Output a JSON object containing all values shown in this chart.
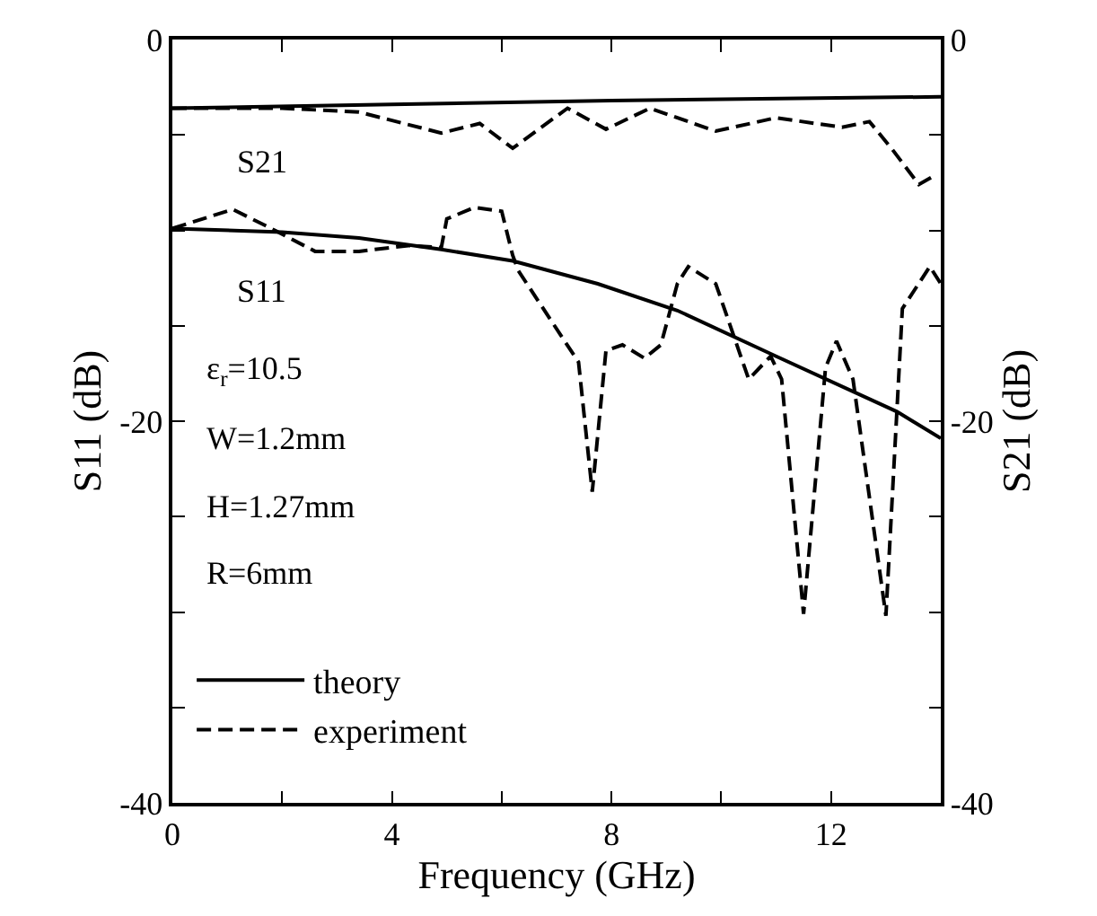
{
  "chart_data": {
    "type": "line",
    "xlabel": "Frequency (GHz)",
    "ylabel": "S11 (dB)",
    "y2label": "S21 (dB)",
    "xlim": [
      0,
      14
    ],
    "xticks": [
      0,
      {
        "value": 2,
        "label": null
      },
      4,
      {
        "value": 6,
        "label": null
      },
      8,
      {
        "value": 10,
        "label": null
      },
      12
    ],
    "ylim": [
      -40,
      0
    ],
    "yticks": [
      -40,
      {
        "value": -35,
        "label": null
      },
      {
        "value": -30,
        "label": null
      },
      {
        "value": -25,
        "label": null
      },
      -20,
      {
        "value": -15,
        "label": null
      },
      {
        "value": -10,
        "label": null
      },
      {
        "value": -5,
        "label": null
      },
      0
    ],
    "y2lim": [
      -40,
      0
    ],
    "y2ticks": [
      -40,
      {
        "value": -35,
        "label": null
      },
      {
        "value": -30,
        "label": null
      },
      {
        "value": -25,
        "label": null
      },
      -20,
      {
        "value": -15,
        "label": null
      },
      {
        "value": -10,
        "label": null
      },
      {
        "value": -5,
        "label": null
      },
      0
    ],
    "legend": "bottom left",
    "marker": "none",
    "series": [
      {
        "name": "theory",
        "color": "#000000",
        "line_style": "solid",
        "x": [
          0,
          2,
          3.4,
          4.9,
          6.2,
          7.75,
          9.2,
          11.0,
          13.2,
          14.0
        ],
        "values": [
          -9.9,
          -10.1,
          -10.4,
          -11.0,
          -11.6,
          -12.8,
          -14.2,
          -16.6,
          -19.5,
          -20.9
        ]
      },
      {
        "color": "#000000",
        "line_style": "solid",
        "axis": "y2",
        "x": [
          0,
          4,
          8,
          14
        ],
        "values": [
          -3.6,
          -3.4,
          -3.2,
          -3.0
        ]
      },
      {
        "name": "experiment",
        "color": "#000000",
        "line_style": "dashed",
        "x": [
          0,
          1.1,
          1.8,
          2.6,
          3.4,
          4.3,
          4.9,
          5.0,
          5.5,
          6.0,
          6.2,
          6.3,
          7.1,
          7.4,
          7.65,
          7.9,
          8.2,
          8.6,
          8.9,
          9.2,
          9.4,
          9.9,
          10.5,
          10.9,
          11.1,
          11.5,
          11.9,
          12.1,
          12.4,
          13.0,
          13.3,
          13.8,
          14.0
        ],
        "values": [
          -9.9,
          -8.9,
          -9.9,
          -11.1,
          -11.1,
          -10.8,
          -10.9,
          -9.4,
          -8.8,
          -9.0,
          -11.3,
          -12.1,
          -15.6,
          -16.9,
          -23.7,
          -16.3,
          -16.0,
          -16.7,
          -16.0,
          -12.8,
          -11.9,
          -12.8,
          -17.8,
          -16.6,
          -17.8,
          -30.1,
          -17.2,
          -15.8,
          -17.8,
          -30.2,
          -14.1,
          -11.9,
          -12.8
        ]
      },
      {
        "color": "#000000",
        "line_style": "dashed",
        "axis": "y2",
        "x": [
          0,
          2,
          3.4,
          4.9,
          5.6,
          6.2,
          7.2,
          7.9,
          8.7,
          9.9,
          11.0,
          12.2,
          12.7,
          13.1,
          13.6,
          13.9
        ],
        "values": [
          -3.6,
          -3.6,
          -3.8,
          -4.9,
          -4.4,
          -5.7,
          -3.6,
          -4.7,
          -3.6,
          -4.8,
          -4.1,
          -4.6,
          -4.3,
          -5.7,
          -7.6,
          -7.1
        ]
      }
    ],
    "annotations": [
      "S21",
      "S11",
      "ε$_{r}$=10.5",
      "W=1.2mm",
      "H=1.27mm",
      "R=6mm"
    ]
  }
}
